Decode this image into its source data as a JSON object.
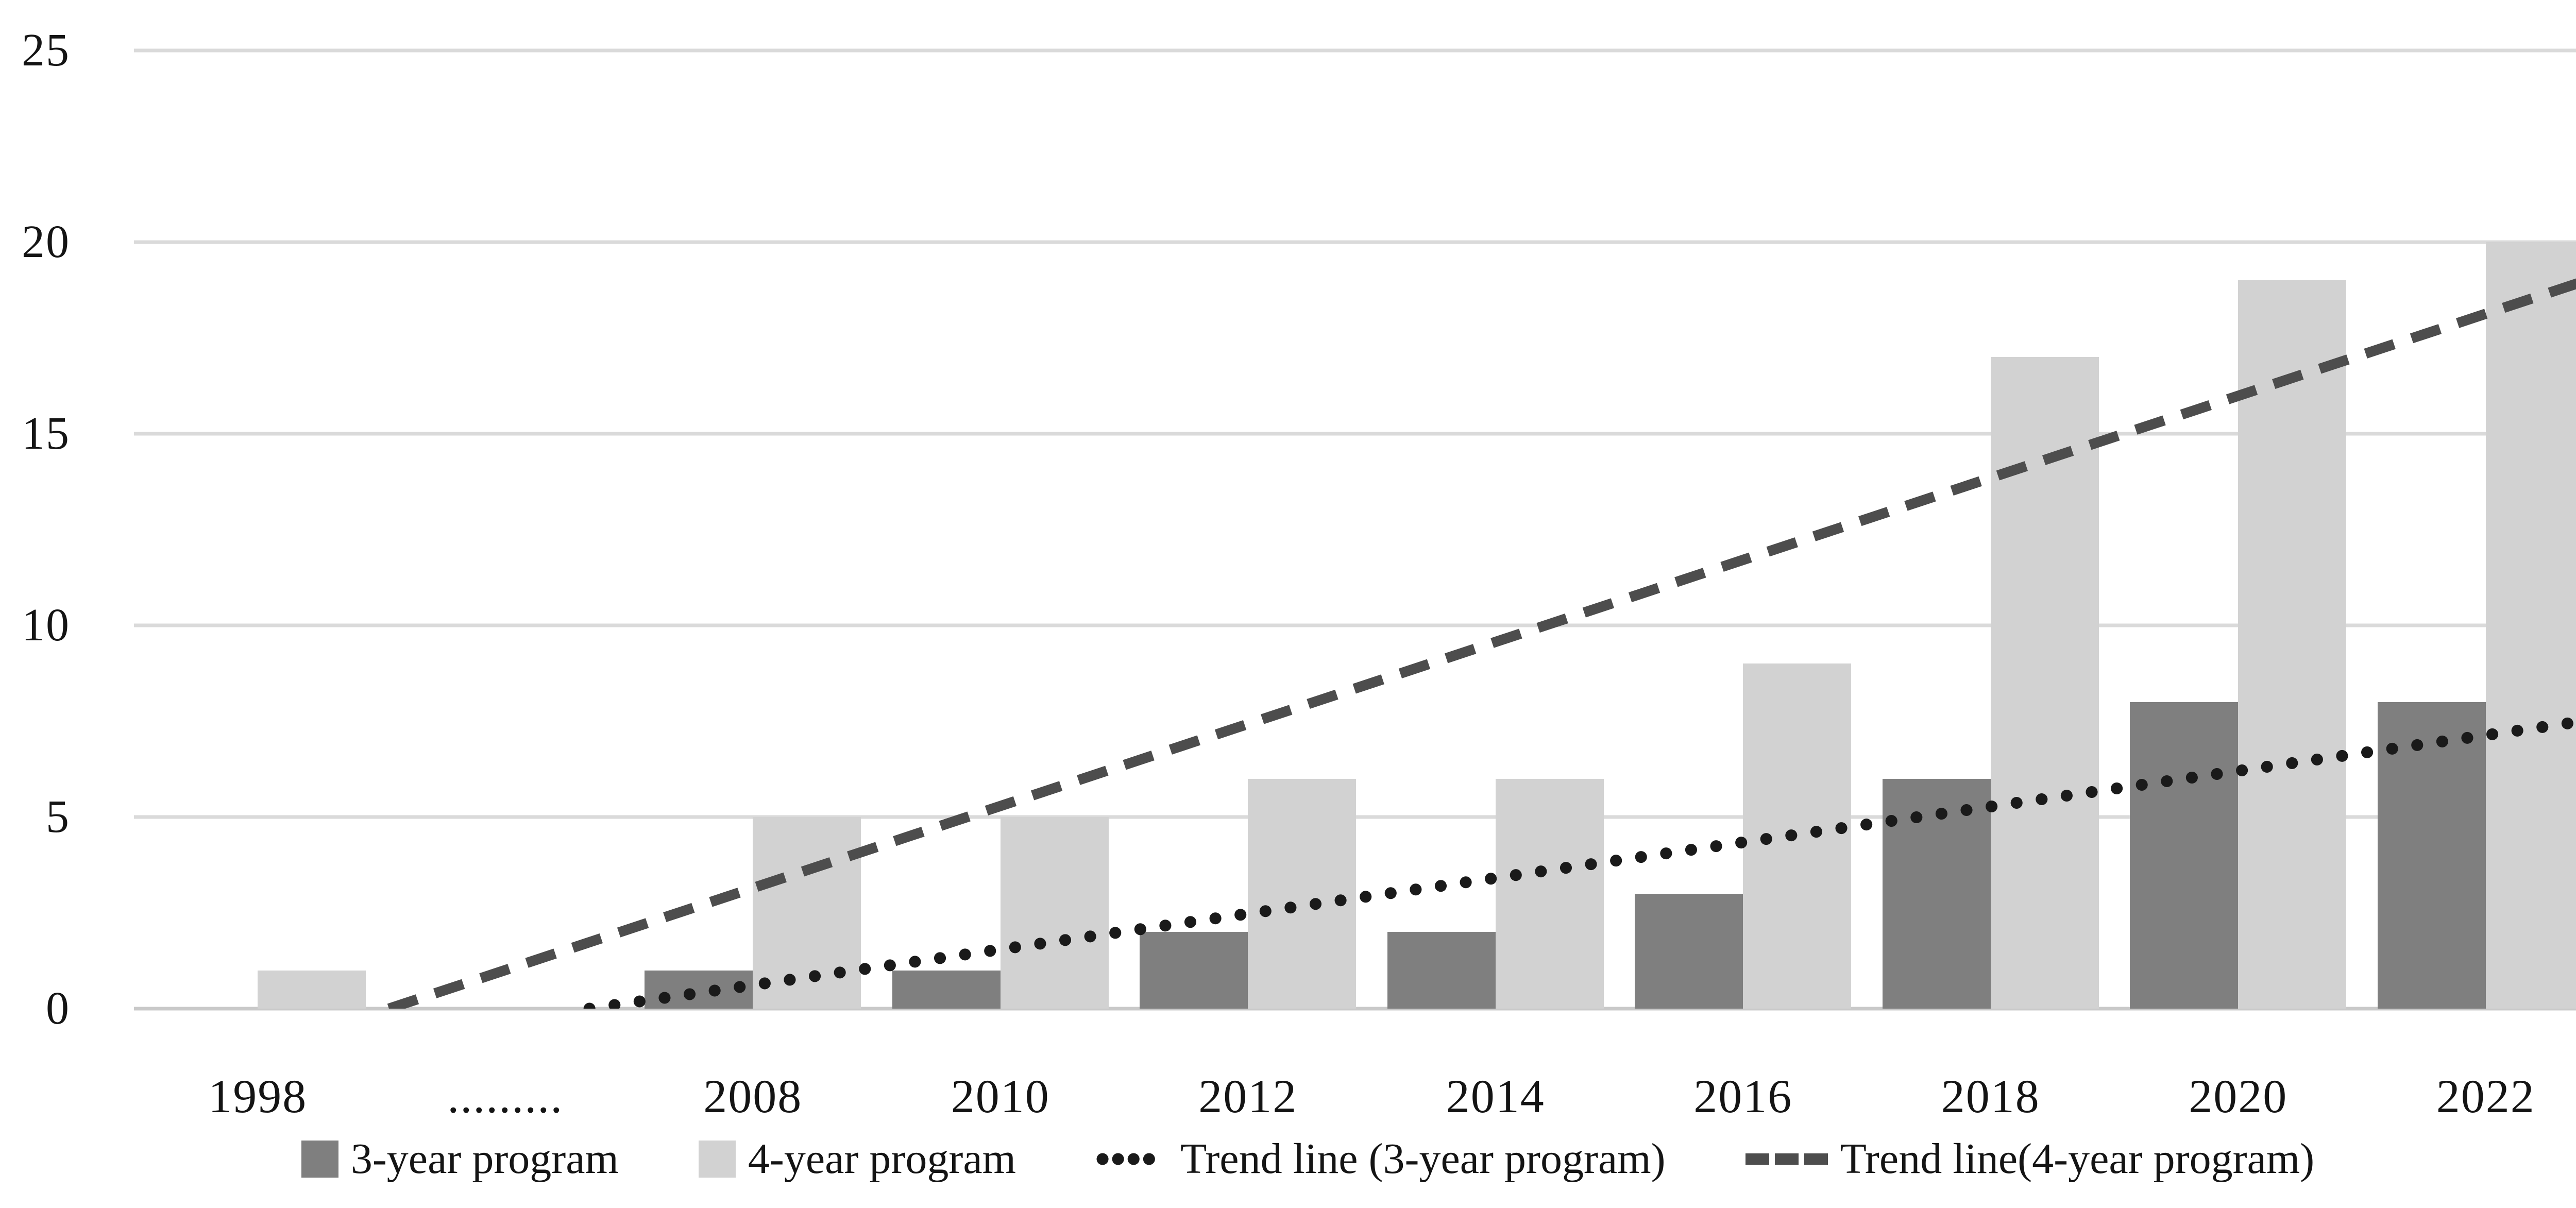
{
  "chart_data": {
    "type": "bar",
    "title": "",
    "categories": [
      "1998",
      ".........",
      "2008",
      "2010",
      "2012",
      "2014",
      "2016",
      "2018",
      "2020",
      "2022"
    ],
    "series": [
      {
        "name": "3-year program",
        "color": "#7f7f7f",
        "values": [
          0,
          0,
          1,
          1,
          2,
          2,
          3,
          6,
          8,
          8
        ]
      },
      {
        "name": "4-year program",
        "color": "#d2d2d2",
        "values": [
          1,
          0,
          5,
          5,
          6,
          6,
          9,
          17,
          19,
          20
        ]
      }
    ],
    "trend_lines": [
      {
        "name": "Trend line (3-year program)",
        "style": "dotted",
        "color": "#1a1a1a",
        "start": {
          "x_frac": 0.184,
          "value": 0
        },
        "end": {
          "x_frac": 1.0,
          "value": 7.6
        }
      },
      {
        "name": "Trend line(4-year program)",
        "style": "dashed",
        "color": "#4d4d4d",
        "start": {
          "x_frac": 0.103,
          "value": 0
        },
        "end": {
          "x_frac": 1.0,
          "value": 19.2
        }
      }
    ],
    "y_axis": {
      "min": 0,
      "max": 25,
      "ticks": [
        0,
        5,
        10,
        15,
        20,
        25
      ]
    },
    "xlabel": "",
    "ylabel": "",
    "ylim": [
      0,
      25
    ],
    "grid": true,
    "grid_color": "#dadada",
    "baseline_color": "#c9c9c9",
    "background": "#ffffff",
    "legend_position": "bottom"
  }
}
